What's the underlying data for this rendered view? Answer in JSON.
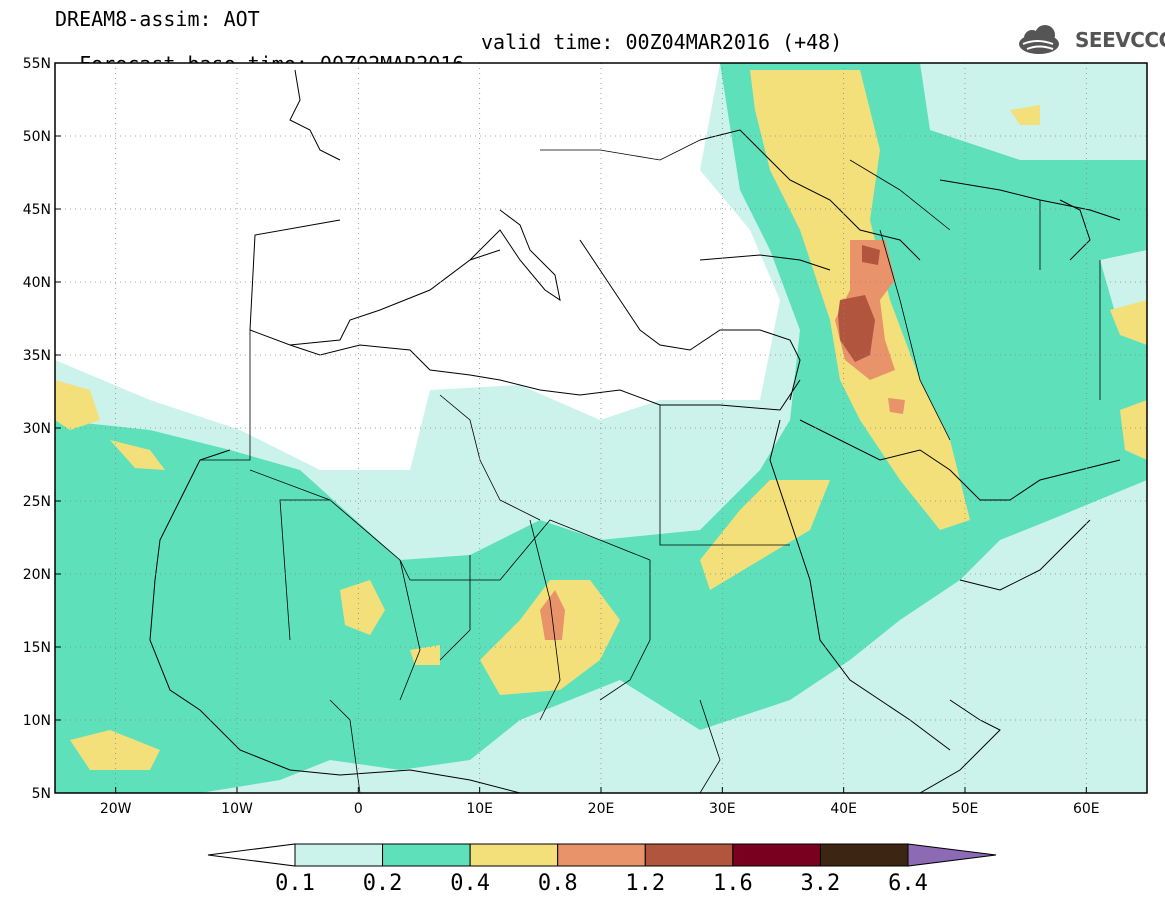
{
  "header": {
    "title_line1": "DREAM8-assim: AOT",
    "base_time": "Forecast base time: 00Z02MAR2016",
    "valid_time": "valid time: 00Z04MAR2016 (+48)"
  },
  "logo": {
    "text": "SEEVCCC",
    "icon": "cloud-icon"
  },
  "map": {
    "lon_range": [
      -25,
      65
    ],
    "lat_range": [
      5,
      55
    ],
    "x_ticks": [
      "20W",
      "10W",
      "0",
      "10E",
      "20E",
      "30E",
      "40E",
      "50E",
      "60E"
    ],
    "y_ticks": [
      "55N",
      "50N",
      "45N",
      "40N",
      "35N",
      "30N",
      "25N",
      "20N",
      "15N",
      "10N",
      "5N"
    ]
  },
  "colorbar": {
    "levels": [
      "0.1",
      "0.2",
      "0.4",
      "0.8",
      "1.2",
      "1.6",
      "3.2",
      "6.4"
    ],
    "colors": [
      "#ccf2ec",
      "#5ee0bb",
      "#f3e07a",
      "#e8936a",
      "#b2553f",
      "#7a0020",
      "#3d2513",
      "#8c6ab4"
    ]
  }
}
